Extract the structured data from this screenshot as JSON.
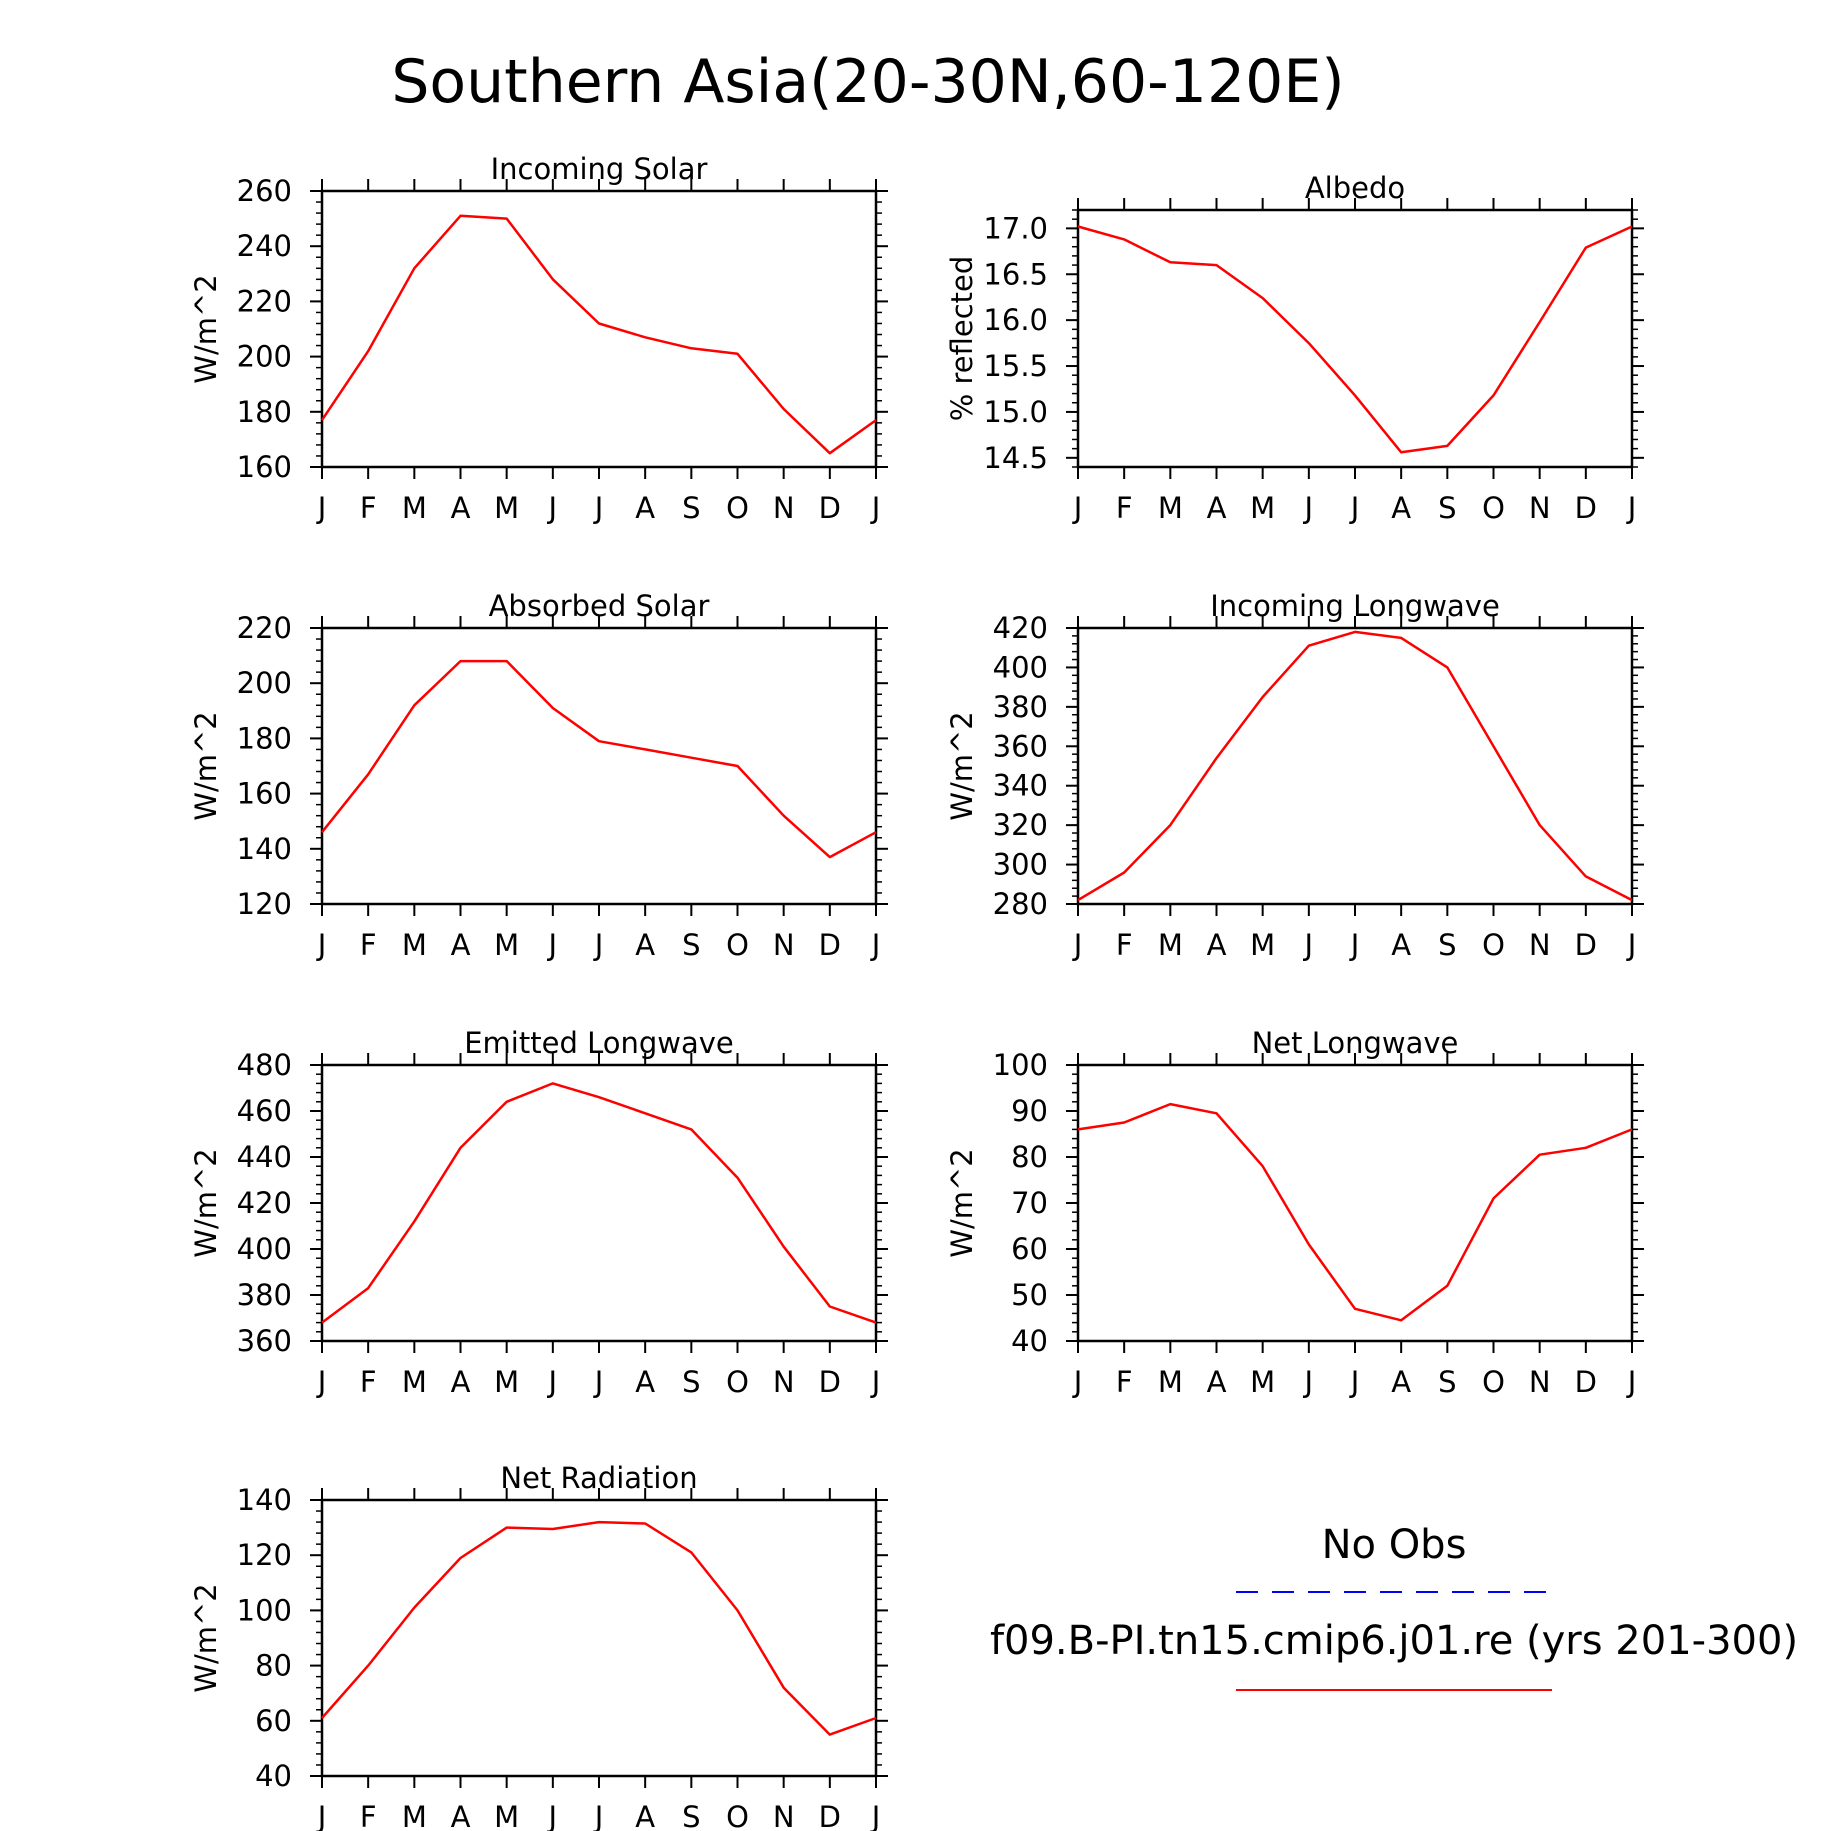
{
  "figure": {
    "title": "Southern Asia(20-30N,60-120E)"
  },
  "legend": {
    "obs_label": "No Obs",
    "obs_color": "#0000ff",
    "model_label": "f09.B-PI.tn15.cmip6.j01.re (yrs 201-300)",
    "model_color": "#ff0000"
  },
  "chart_data": [
    {
      "type": "line",
      "title": "Incoming Solar",
      "ylabel": "W/m^2",
      "categories": [
        "J",
        "F",
        "M",
        "A",
        "M",
        "J",
        "J",
        "A",
        "S",
        "O",
        "N",
        "D",
        "J"
      ],
      "ylim": [
        160,
        260
      ],
      "yticks": [
        "160",
        "180",
        "200",
        "220",
        "240",
        "260"
      ],
      "series": [
        {
          "values": [
            177,
            202,
            232,
            251,
            250,
            228,
            212,
            207,
            203,
            201,
            181,
            165,
            177
          ],
          "color": "#ff0000"
        }
      ]
    },
    {
      "type": "line",
      "title": "Albedo",
      "ylabel": "% reflected",
      "categories": [
        "J",
        "F",
        "M",
        "A",
        "M",
        "J",
        "J",
        "A",
        "S",
        "O",
        "N",
        "D",
        "J"
      ],
      "ylim": [
        14.4,
        17.2
      ],
      "yticks": [
        "14.5",
        "15.0",
        "15.5",
        "16.0",
        "16.5",
        "17.0"
      ],
      "series": [
        {
          "values": [
            17.02,
            16.88,
            16.63,
            16.6,
            16.24,
            15.75,
            15.18,
            14.56,
            14.63,
            15.18,
            15.98,
            16.79,
            17.02
          ],
          "color": "#ff0000"
        }
      ]
    },
    {
      "type": "line",
      "title": "Absorbed Solar",
      "ylabel": "W/m^2",
      "categories": [
        "J",
        "F",
        "M",
        "A",
        "M",
        "J",
        "J",
        "A",
        "S",
        "O",
        "N",
        "D",
        "J"
      ],
      "ylim": [
        120,
        220
      ],
      "yticks": [
        "120",
        "140",
        "160",
        "180",
        "200",
        "220"
      ],
      "series": [
        {
          "values": [
            146,
            167,
            192,
            208,
            208,
            191,
            179,
            176,
            173,
            170,
            152,
            137,
            146
          ],
          "color": "#ff0000"
        }
      ]
    },
    {
      "type": "line",
      "title": "Incoming Longwave",
      "ylabel": "W/m^2",
      "categories": [
        "J",
        "F",
        "M",
        "A",
        "M",
        "J",
        "J",
        "A",
        "S",
        "O",
        "N",
        "D",
        "J"
      ],
      "ylim": [
        280,
        420
      ],
      "yticks": [
        "280",
        "300",
        "320",
        "340",
        "360",
        "380",
        "400",
        "420"
      ],
      "series": [
        {
          "values": [
            282,
            296,
            320,
            354,
            385,
            411,
            418,
            415,
            400,
            360,
            320,
            294,
            282
          ],
          "color": "#ff0000"
        }
      ]
    },
    {
      "type": "line",
      "title": "Emitted Longwave",
      "ylabel": "W/m^2",
      "categories": [
        "J",
        "F",
        "M",
        "A",
        "M",
        "J",
        "J",
        "A",
        "S",
        "O",
        "N",
        "D",
        "J"
      ],
      "ylim": [
        360,
        480
      ],
      "yticks": [
        "360",
        "380",
        "400",
        "420",
        "440",
        "460",
        "480"
      ],
      "series": [
        {
          "values": [
            368,
            383,
            412,
            444,
            464,
            472,
            466,
            459,
            452,
            431,
            401,
            375,
            368
          ],
          "color": "#ff0000"
        }
      ]
    },
    {
      "type": "line",
      "title": "Net Longwave",
      "ylabel": "W/m^2",
      "categories": [
        "J",
        "F",
        "M",
        "A",
        "M",
        "J",
        "J",
        "A",
        "S",
        "O",
        "N",
        "D",
        "J"
      ],
      "ylim": [
        40,
        100
      ],
      "yticks": [
        "40",
        "50",
        "60",
        "70",
        "80",
        "90",
        "100"
      ],
      "series": [
        {
          "values": [
            86,
            87.5,
            91.5,
            89.5,
            78,
            61,
            47,
            44.5,
            52,
            71,
            80.5,
            82,
            86
          ],
          "color": "#ff0000"
        }
      ]
    },
    {
      "type": "line",
      "title": "Net Radiation",
      "ylabel": "W/m^2",
      "categories": [
        "J",
        "F",
        "M",
        "A",
        "M",
        "J",
        "J",
        "A",
        "S",
        "O",
        "N",
        "D",
        "J"
      ],
      "ylim": [
        40,
        140
      ],
      "yticks": [
        "40",
        "60",
        "80",
        "100",
        "120",
        "140"
      ],
      "series": [
        {
          "values": [
            61,
            80,
            101,
            119,
            130,
            129.5,
            132,
            131.5,
            121,
            100,
            72,
            55,
            61
          ],
          "color": "#ff0000"
        }
      ]
    }
  ]
}
